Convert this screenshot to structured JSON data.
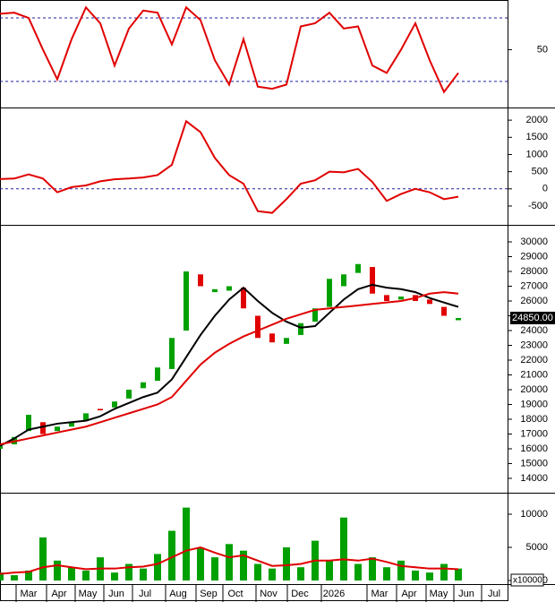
{
  "chart_data": [
    {
      "type": "line",
      "xlim": [
        0,
        142
      ],
      "ylim": [
        -3,
        97
      ],
      "yticks": [
        50
      ],
      "reference_lines": [
        20,
        80
      ],
      "x": [
        0,
        4,
        8,
        12,
        16,
        20,
        24,
        28,
        32,
        36,
        40,
        44,
        48,
        52,
        56,
        60,
        64,
        68,
        72,
        76,
        80,
        84,
        88,
        92,
        96,
        100,
        104,
        108,
        112,
        116,
        120,
        124,
        128
      ],
      "series": [
        {
          "color": "#e00000",
          "values": [
            84,
            85,
            80,
            50,
            22,
            60,
            90,
            75,
            35,
            70,
            87,
            85,
            55,
            90,
            78,
            40,
            17,
            60,
            15,
            13,
            17,
            72,
            75,
            85,
            70,
            72,
            35,
            28,
            50,
            75,
            40,
            10,
            28
          ]
        }
      ]
    },
    {
      "type": "line",
      "xlim": [
        0,
        142
      ],
      "ylim": [
        -970,
        2290
      ],
      "yticks": [
        -500,
        0,
        500,
        1000,
        1500,
        2000
      ],
      "reference_lines": [
        0
      ],
      "x": [
        0,
        4,
        8,
        12,
        16,
        20,
        24,
        28,
        32,
        36,
        40,
        44,
        48,
        52,
        56,
        60,
        64,
        68,
        72,
        76,
        80,
        84,
        88,
        92,
        96,
        100,
        104,
        108,
        112,
        116,
        120,
        124,
        128
      ],
      "series": [
        {
          "color": "#e00000",
          "values": [
            285,
            300,
            420,
            300,
            -100,
            50,
            100,
            220,
            280,
            300,
            330,
            400,
            700,
            1970,
            1650,
            900,
            400,
            150,
            -650,
            -700,
            -300,
            150,
            250,
            500,
            480,
            580,
            200,
            -350,
            -150,
            0,
            -100,
            -300,
            -230
          ]
        }
      ]
    },
    {
      "type": "candlestick",
      "xlim": [
        0,
        142
      ],
      "ylim": [
        13150,
        30970
      ],
      "yticks": [
        14000,
        15000,
        16000,
        17000,
        18000,
        19000,
        20000,
        21000,
        22000,
        23000,
        24000,
        25000,
        26000,
        27000,
        28000,
        29000,
        30000
      ],
      "up_color": "#00a000",
      "down_color": "#e00000",
      "x": [
        0,
        4,
        8,
        12,
        16,
        20,
        24,
        28,
        32,
        36,
        40,
        44,
        48,
        52,
        56,
        60,
        64,
        68,
        72,
        76,
        80,
        84,
        88,
        92,
        96,
        100,
        104,
        108,
        112,
        116,
        120,
        124,
        128
      ],
      "open": [
        16000,
        16300,
        17200,
        17800,
        17200,
        17500,
        17900,
        18700,
        18800,
        19400,
        20100,
        20600,
        21400,
        24000,
        27800,
        26600,
        26700,
        26900,
        25000,
        23800,
        23100,
        23700,
        24600,
        25600,
        27000,
        27900,
        28300,
        26400,
        26100,
        26400,
        26100,
        25600,
        24700
      ],
      "close": [
        16200,
        16800,
        18300,
        17000,
        17500,
        17800,
        18400,
        18600,
        19200,
        20000,
        20500,
        21500,
        23500,
        28000,
        27000,
        26800,
        27000,
        25500,
        23500,
        23200,
        23500,
        24500,
        25500,
        27500,
        27800,
        28500,
        26500,
        26000,
        26300,
        26000,
        25800,
        25000,
        24850
      ],
      "value_labels": [
        null,
        null,
        null,
        null,
        null,
        null,
        null,
        null,
        null,
        null,
        null,
        null,
        null,
        null,
        null,
        null,
        null,
        null,
        null,
        null,
        null,
        null,
        null,
        null,
        null,
        null,
        null,
        null,
        null,
        null,
        null,
        null,
        "24850.00"
      ],
      "series": [
        {
          "color": "#000000",
          "values": [
            16200,
            16700,
            17300,
            17500,
            17700,
            17800,
            17900,
            18200,
            18700,
            19100,
            19500,
            19800,
            20700,
            22200,
            23700,
            25000,
            26100,
            26900,
            26000,
            25200,
            24600,
            24200,
            24300,
            25200,
            26100,
            26800,
            27100,
            26900,
            26800,
            26600,
            26200,
            25900,
            25600
          ]
        },
        {
          "color": "#e00000",
          "values": [
            16300,
            16500,
            16700,
            16900,
            17100,
            17300,
            17500,
            17800,
            18100,
            18400,
            18700,
            19000,
            19500,
            20600,
            21700,
            22500,
            23100,
            23600,
            24000,
            24400,
            24800,
            25100,
            25400,
            25500,
            25600,
            25700,
            25800,
            25900,
            26000,
            26200,
            26500,
            26600,
            26500
          ]
        }
      ]
    },
    {
      "type": "bar",
      "xlim": [
        0,
        142
      ],
      "ylim": [
        -270,
        12840
      ],
      "yticks": [
        0,
        5000,
        10000
      ],
      "unit_label": "x10000",
      "color": "#00a000",
      "x": [
        0,
        4,
        8,
        12,
        16,
        20,
        24,
        28,
        32,
        36,
        40,
        44,
        48,
        52,
        56,
        60,
        64,
        68,
        72,
        76,
        80,
        84,
        88,
        92,
        96,
        100,
        104,
        108,
        112,
        116,
        120,
        124,
        128
      ],
      "values": [
        1200,
        800,
        1500,
        6500,
        3000,
        2000,
        1500,
        3500,
        1200,
        2500,
        1800,
        4000,
        7500,
        11000,
        5000,
        3500,
        5500,
        4500,
        2500,
        1800,
        5000,
        2000,
        6000,
        3000,
        9500,
        2500,
        3500,
        2000,
        3000,
        1500,
        1200,
        2500,
        1800
      ],
      "series": [
        {
          "color": "#e00000",
          "values": [
            1000,
            1200,
            1300,
            2000,
            2300,
            2000,
            1700,
            1800,
            1800,
            2000,
            2100,
            2500,
            3500,
            4500,
            5000,
            4200,
            3500,
            3800,
            3000,
            2200,
            2300,
            2500,
            3000,
            3000,
            3200,
            3000,
            3300,
            2800,
            2200,
            2000,
            1800,
            1800,
            1700
          ]
        }
      ],
      "xticks": [
        {
          "value": 8,
          "label": "Mar"
        },
        {
          "value": 16.5,
          "label": "Apr"
        },
        {
          "value": 24.5,
          "label": "May"
        },
        {
          "value": 32.5,
          "label": "Jun"
        },
        {
          "value": 40.5,
          "label": "Jul"
        },
        {
          "value": 49.75,
          "label": "Aug"
        },
        {
          "value": 58.25,
          "label": "Sep"
        },
        {
          "value": 65.75,
          "label": "Oct"
        },
        {
          "value": 75,
          "label": "Nov"
        },
        {
          "value": 83.75,
          "label": "Dec"
        },
        {
          "value": 93.25,
          "label": "2026"
        },
        {
          "value": 106,
          "label": "Mar"
        },
        {
          "value": 114.25,
          "label": "Apr"
        },
        {
          "value": 122.5,
          "label": "May"
        },
        {
          "value": 130.25,
          "label": "Jun"
        },
        {
          "value": 138,
          "label": "Jul"
        }
      ]
    }
  ]
}
